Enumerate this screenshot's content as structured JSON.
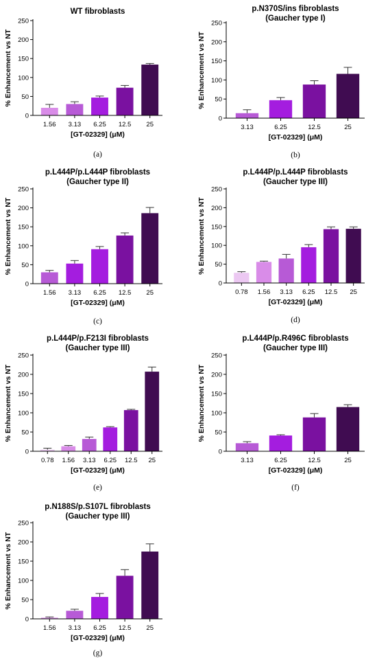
{
  "figure": {
    "xlabel": "[GT-02329] (μM)",
    "ylabel": "% Enhancement vs NT"
  },
  "chart_data": [
    {
      "type": "bar",
      "caption": "(a)",
      "title": [
        "WT fibroblasts"
      ],
      "xlabel": "[GT-02329] (μM)",
      "ylabel": "% Enhancement vs NT",
      "ylim": [
        0,
        250
      ],
      "yticks": [
        0,
        50,
        100,
        150,
        200,
        250
      ],
      "categories": [
        "1.56",
        "3.13",
        "6.25",
        "12.5",
        "25"
      ],
      "values": [
        20,
        30,
        47,
        73,
        134
      ],
      "errors": [
        9,
        6,
        4,
        6,
        3
      ],
      "colors": [
        "#d98ce8",
        "#b75ad6",
        "#a41ddf",
        "#7a11a0",
        "#400c51"
      ]
    },
    {
      "type": "bar",
      "caption": "(b)",
      "title": [
        "p.N370S/ins fibroblasts",
        "(Gaucher type I)"
      ],
      "xlabel": "[GT-02329] (μM)",
      "ylabel": "% Enhancement vs NT",
      "ylim": [
        0,
        250
      ],
      "yticks": [
        0,
        50,
        100,
        150,
        200,
        250
      ],
      "categories": [
        "3.13",
        "6.25",
        "12.5",
        "25"
      ],
      "values": [
        13,
        47,
        88,
        116
      ],
      "errors": [
        9,
        7,
        10,
        17
      ],
      "colors": [
        "#b75ad6",
        "#a41ddf",
        "#7a11a0",
        "#400c51"
      ]
    },
    {
      "type": "bar",
      "caption": "(c)",
      "title": [
        "p.L444P/p.L444P fibroblasts",
        "(Gaucher type II)"
      ],
      "xlabel": "[GT-02329] (μM)",
      "ylabel": "% Enhancement vs NT",
      "ylim": [
        0,
        250
      ],
      "yticks": [
        0,
        50,
        100,
        150,
        200,
        250
      ],
      "categories": [
        "1.56",
        "3.13",
        "6.25",
        "12.5",
        "25"
      ],
      "values": [
        30,
        53,
        91,
        127,
        186
      ],
      "errors": [
        5,
        8,
        7,
        7,
        15
      ],
      "colors": [
        "#b75ad6",
        "#a41ddf",
        "#a41ddf",
        "#7a11a0",
        "#400c51"
      ]
    },
    {
      "type": "bar",
      "caption": "(d)",
      "title": [
        "p.L444P/p.L444P fibroblasts",
        "(Gaucher type III)"
      ],
      "xlabel": "[GT-02329] (μM)",
      "ylabel": "% Enhancement vs NT",
      "ylim": [
        0,
        250
      ],
      "yticks": [
        0,
        50,
        100,
        150,
        200,
        250
      ],
      "categories": [
        "0.78",
        "1.56",
        "3.13",
        "6.25",
        "12.5",
        "25"
      ],
      "values": [
        27,
        56,
        65,
        95,
        143,
        144
      ],
      "errors": [
        3,
        2,
        11,
        7,
        6,
        5
      ],
      "colors": [
        "#ecc8f2",
        "#d98ce8",
        "#b75ad6",
        "#a41ddf",
        "#7a11a0",
        "#400c51"
      ]
    },
    {
      "type": "bar",
      "caption": "(e)",
      "title": [
        "p.L444P/p.F213I fibroblasts",
        "(Gaucher type III)"
      ],
      "xlabel": "[GT-02329] (μM)",
      "ylabel": "% Enhancement vs NT",
      "ylim": [
        0,
        250
      ],
      "yticks": [
        0,
        50,
        100,
        150,
        200,
        250
      ],
      "categories": [
        "0.78",
        "1.56",
        "3.13",
        "6.25",
        "12.5",
        "25"
      ],
      "values": [
        4,
        13,
        32,
        62,
        107,
        207
      ],
      "errors": [
        4,
        2,
        5,
        2,
        2,
        12
      ],
      "colors": [
        "#ecc8f2",
        "#d98ce8",
        "#b75ad6",
        "#a41ddf",
        "#7a11a0",
        "#400c51"
      ]
    },
    {
      "type": "bar",
      "caption": "(f)",
      "title": [
        "p.L444P/p.R496C fibroblasts",
        "(Gaucher type III)"
      ],
      "xlabel": "[GT-02329] (μM)",
      "ylabel": "% Enhancement vs NT",
      "ylim": [
        0,
        250
      ],
      "yticks": [
        0,
        50,
        100,
        150,
        200,
        250
      ],
      "categories": [
        "3.13",
        "6.25",
        "12.5",
        "25"
      ],
      "values": [
        21,
        41,
        88,
        115
      ],
      "errors": [
        4,
        2,
        10,
        6
      ],
      "colors": [
        "#b75ad6",
        "#a41ddf",
        "#7a11a0",
        "#400c51"
      ]
    },
    {
      "type": "bar",
      "caption": "(g)",
      "title": [
        "p.N188S/p.S107L fibroblasts",
        "(Gaucher type III)"
      ],
      "xlabel": "[GT-02329] (μM)",
      "ylabel": "% Enhancement vs NT",
      "ylim": [
        0,
        250
      ],
      "yticks": [
        0,
        50,
        100,
        150,
        200,
        250
      ],
      "categories": [
        "1.56",
        "3.13",
        "6.25",
        "12.5",
        "25"
      ],
      "values": [
        3,
        21,
        57,
        112,
        175
      ],
      "errors": [
        2,
        4,
        9,
        16,
        20
      ],
      "colors": [
        "#d98ce8",
        "#b75ad6",
        "#a41ddf",
        "#7a11a0",
        "#400c51"
      ]
    }
  ]
}
